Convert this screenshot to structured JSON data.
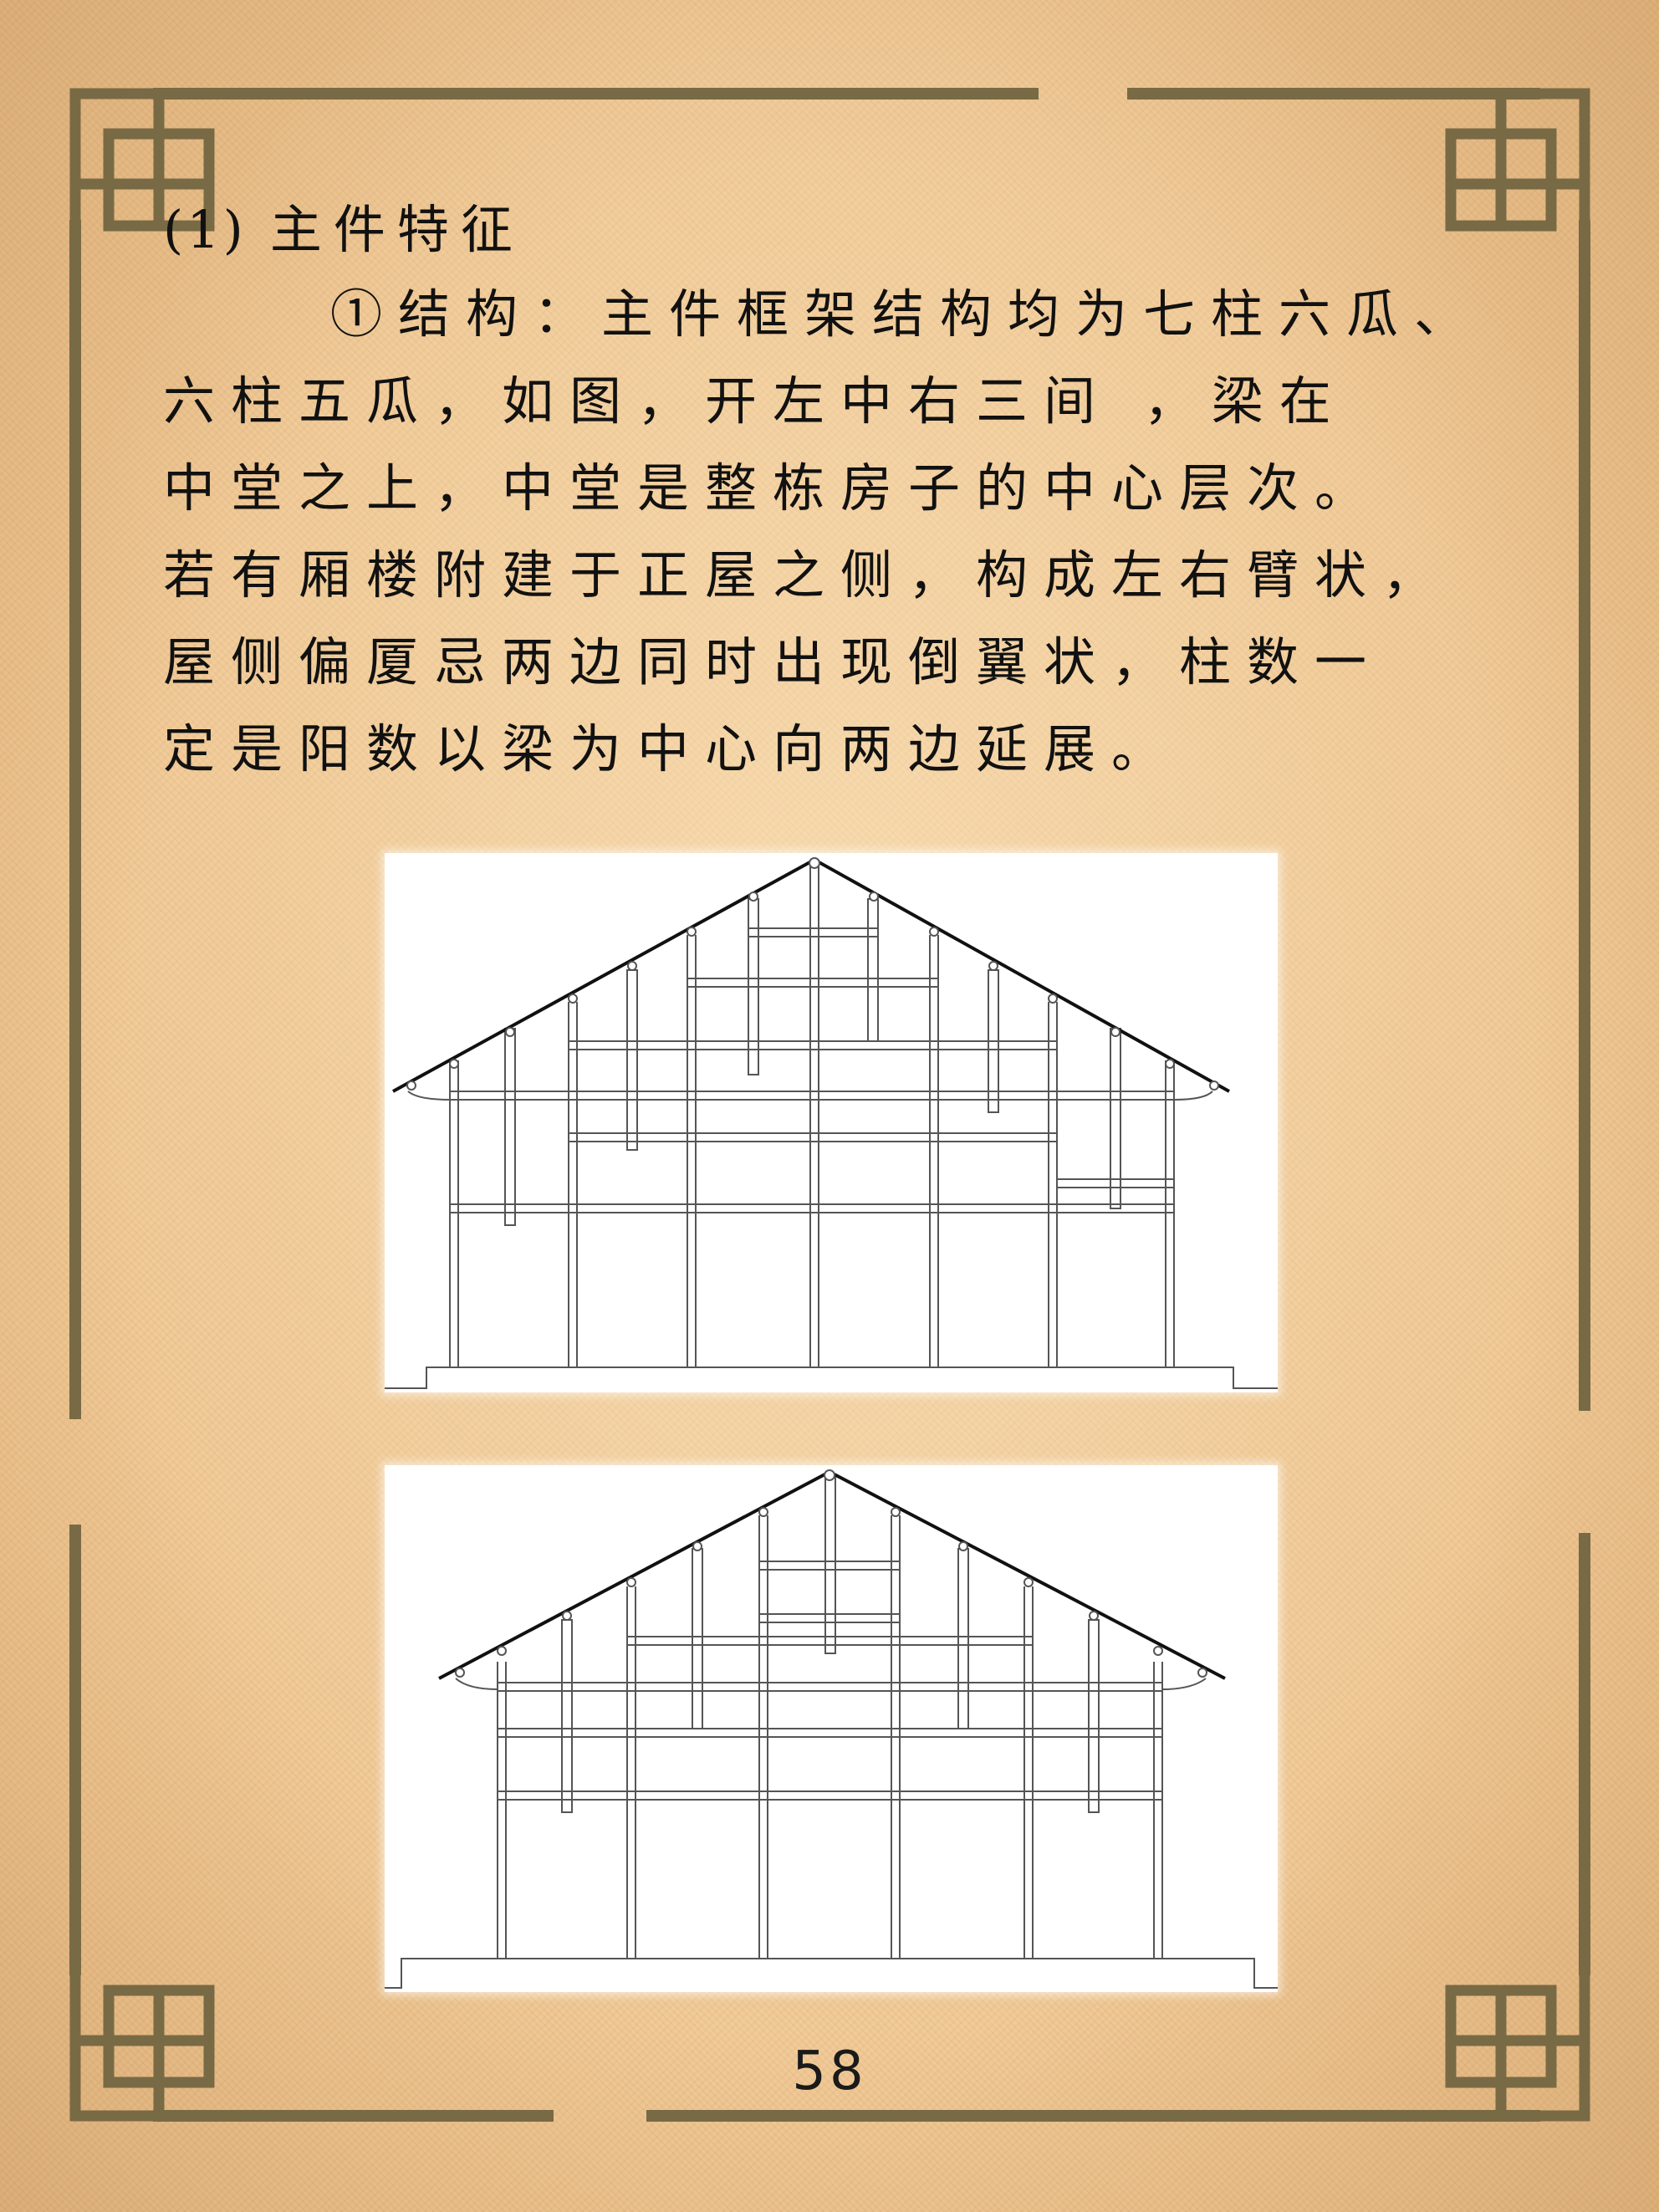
{
  "section": {
    "number": "(1)",
    "title": "主件特征"
  },
  "paragraph": {
    "lines": [
      "①结构：主件框架结构均为七柱六瓜、",
      "六柱五瓜，如图，开左中右三间 ，梁在",
      "中堂之上，中堂是整栋房子的中心层次。",
      "若有厢楼附建于正屋之侧，构成左右臂状，",
      "屋侧偏厦忌两边同时出现倒翼状，柱数一",
      "定是阳数以梁为中心向两边延展。"
    ]
  },
  "figures": [
    {
      "name": "七柱六瓜",
      "columns": 7,
      "melons": 6
    },
    {
      "name": "六柱五瓜",
      "columns": 6,
      "melons": 5
    }
  ],
  "colors": {
    "paper": "#f0c894",
    "frame": "#786a45",
    "ink": "#111111"
  },
  "page": {
    "number": "58"
  }
}
